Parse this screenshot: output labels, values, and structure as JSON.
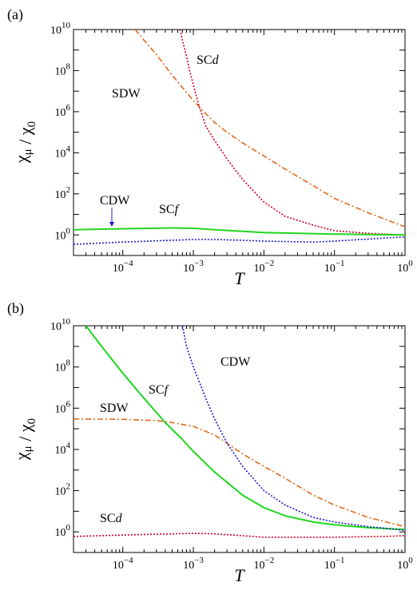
{
  "chart_data": [
    {
      "type": "line",
      "panel_label": "(a)",
      "xlabel": "T",
      "ylabel": "χ_μ / χ_0",
      "xscale": "log",
      "yscale": "log",
      "xlim": [
        2e-05,
        1
      ],
      "ylim": [
        0.1,
        10000000000
      ],
      "xtick_labels": [
        "10^-4",
        "10^-3",
        "10^-2",
        "10^-1",
        "10^0"
      ],
      "ytick_labels": [
        "10^0",
        "10^2",
        "10^4",
        "10^6",
        "10^8",
        "10^10"
      ],
      "series": [
        {
          "name": "SDW",
          "color": "#e06a1b",
          "style": "dash-dot",
          "x": [
            0.00015,
            0.0002,
            0.0003,
            0.0005,
            0.0007,
            0.001,
            0.0015,
            0.002,
            0.003,
            0.005,
            0.01,
            0.02,
            0.05,
            0.1,
            0.3,
            1
          ],
          "y": [
            10000000000.0,
            3000000000.0,
            600000000.0,
            60000000.0,
            15000000.0,
            3500000.0,
            800000.0,
            300000.0,
            100000.0,
            30000.0,
            7000,
            1600,
            250,
            60,
            12,
            2.5
          ]
        },
        {
          "name": "SCd",
          "color": "#d1001f",
          "style": "dotted",
          "x": [
            0.00065,
            0.0007,
            0.0008,
            0.0009,
            0.001,
            0.0012,
            0.0015,
            0.002,
            0.003,
            0.005,
            0.01,
            0.02,
            0.05,
            0.1,
            0.3,
            1
          ],
          "y": [
            10000000000.0,
            3000000000.0,
            500000000.0,
            80000000.0,
            20000000.0,
            2000000.0,
            200000.0,
            40000.0,
            5000,
            500,
            40,
            8,
            3,
            1.6,
            1.2,
            1.0
          ]
        },
        {
          "name": "SCf",
          "color": "#1fd61f",
          "style": "solid",
          "x": [
            2e-05,
            0.0001,
            0.0005,
            0.001,
            0.002,
            0.005,
            0.01,
            0.1,
            1
          ],
          "y": [
            1.8,
            2.0,
            2.2,
            2.1,
            1.8,
            1.5,
            1.3,
            1.1,
            1.0
          ]
        },
        {
          "name": "CDW",
          "color": "#1a1acc",
          "style": "dotted",
          "x": [
            2e-05,
            0.0001,
            0.0005,
            0.001,
            0.002,
            0.005,
            0.01,
            0.05,
            0.1,
            0.5,
            1
          ],
          "y": [
            0.35,
            0.45,
            0.55,
            0.6,
            0.6,
            0.55,
            0.5,
            0.45,
            0.5,
            0.7,
            0.8
          ]
        }
      ]
    },
    {
      "type": "line",
      "panel_label": "(b)",
      "xlabel": "T",
      "ylabel": "χ_μ / χ_0",
      "xscale": "log",
      "yscale": "log",
      "xlim": [
        2e-05,
        1
      ],
      "ylim": [
        0.1,
        10000000000
      ],
      "xtick_labels": [
        "10^-4",
        "10^-3",
        "10^-2",
        "10^-1",
        "10^0"
      ],
      "ytick_labels": [
        "10^0",
        "10^2",
        "10^4",
        "10^6",
        "10^8",
        "10^10"
      ],
      "series": [
        {
          "name": "SCf",
          "color": "#1fd61f",
          "style": "solid",
          "x": [
            3e-05,
            5e-05,
            0.0001,
            0.0002,
            0.0004,
            0.0007,
            0.001,
            0.002,
            0.005,
            0.01,
            0.02,
            0.05,
            0.1,
            0.3,
            1
          ],
          "y": [
            10000000000.0,
            1000000000.0,
            50000000.0,
            3000000.0,
            200000.0,
            30000.0,
            8000,
            800,
            60,
            15,
            6,
            3,
            2.2,
            1.6,
            1.3
          ]
        },
        {
          "name": "SDW",
          "color": "#e06a1b",
          "style": "dash-dot",
          "x": [
            2e-05,
            0.0001,
            0.0003,
            0.0005,
            0.001,
            0.002,
            0.003,
            0.005,
            0.01,
            0.02,
            0.05,
            0.1,
            0.3,
            1
          ],
          "y": [
            300000,
            290000,
            250000,
            200000,
            130000,
            50000,
            20000,
            6000,
            1500,
            400,
            60,
            20,
            5,
            1.8
          ]
        },
        {
          "name": "CDW",
          "color": "#1a1acc",
          "style": "dotted",
          "x": [
            0.0007,
            0.0008,
            0.001,
            0.0015,
            0.002,
            0.003,
            0.005,
            0.01,
            0.02,
            0.05,
            0.1,
            0.3,
            1
          ],
          "y": [
            10000000000.0,
            1000000000.0,
            100000000.0,
            3000000.0,
            300000.0,
            20000.0,
            1500,
            100,
            20,
            5,
            3,
            1.8,
            1.2
          ]
        },
        {
          "name": "SCd",
          "color": "#d1001f",
          "style": "dotted",
          "x": [
            2e-05,
            0.0001,
            0.0005,
            0.001,
            0.002,
            0.005,
            0.01,
            0.05,
            0.1,
            0.5,
            1
          ],
          "y": [
            0.6,
            0.7,
            0.8,
            0.85,
            0.8,
            0.65,
            0.55,
            0.55,
            0.55,
            0.6,
            0.65
          ]
        }
      ]
    }
  ]
}
